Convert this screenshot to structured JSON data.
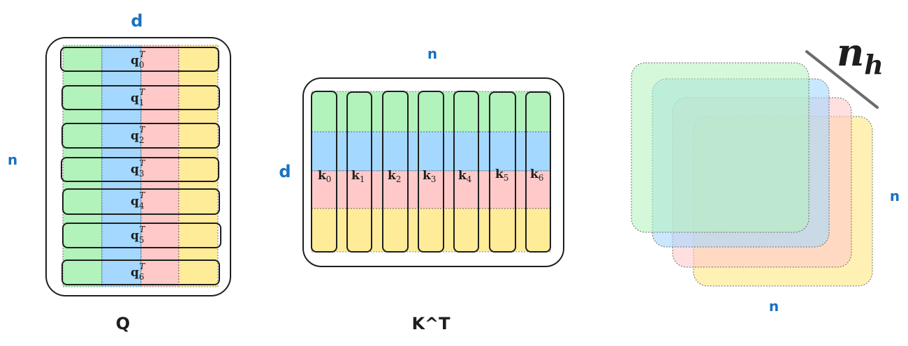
{
  "q_matrix": {
    "name_label": "Q",
    "top_label": "d",
    "side_label": "n",
    "rows": [
      {
        "vec": "q",
        "sub": "0",
        "sup": "T"
      },
      {
        "vec": "q",
        "sub": "1",
        "sup": "T"
      },
      {
        "vec": "q",
        "sub": "2",
        "sup": "T"
      },
      {
        "vec": "q",
        "sub": "3",
        "sup": "T"
      },
      {
        "vec": "q",
        "sub": "4",
        "sup": "T"
      },
      {
        "vec": "q",
        "sub": "5",
        "sup": "T"
      },
      {
        "vec": "q",
        "sub": "6",
        "sup": "T"
      }
    ],
    "stripe_colors": [
      "#b2f2bb",
      "#a5d8ff",
      "#ffc9c9",
      "#ffec99"
    ]
  },
  "k_matrix": {
    "name_label": "K^T",
    "top_label": "n",
    "side_label": "d",
    "cols": [
      {
        "vec": "k",
        "sub": "0"
      },
      {
        "vec": "k",
        "sub": "1"
      },
      {
        "vec": "k",
        "sub": "2"
      },
      {
        "vec": "k",
        "sub": "3"
      },
      {
        "vec": "k",
        "sub": "4"
      },
      {
        "vec": "k",
        "sub": "5"
      },
      {
        "vec": "k",
        "sub": "6"
      }
    ],
    "stripe_colors": [
      "#b2f2bb",
      "#a5d8ff",
      "#ffc9c9",
      "#ffec99"
    ]
  },
  "heads_stack": {
    "heads_label_base": "n",
    "heads_label_sub": "h",
    "right_label": "n",
    "bottom_label": "n",
    "layer_colors": [
      "#ffec99",
      "#ffc9c9",
      "#a5d8ff",
      "#b2f2bb"
    ]
  }
}
